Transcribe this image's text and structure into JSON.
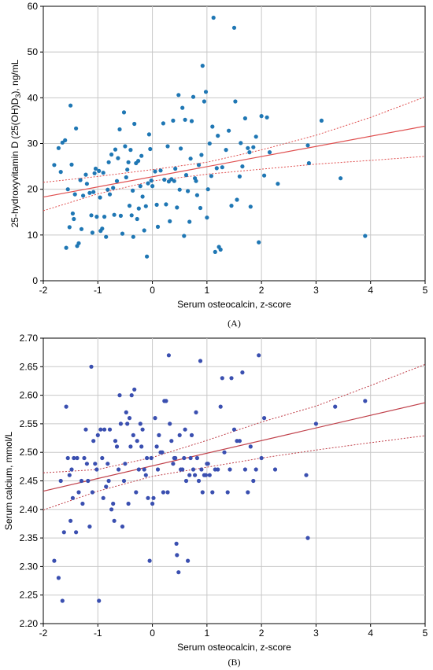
{
  "chart_data": [
    {
      "type": "scatter",
      "panel_label": "(A)",
      "xlabel": "Serum osteocalcin, z-score",
      "ylabel_main": "25-hydroxyvitamin D (25(OH)D",
      "ylabel_sub": "3",
      "ylabel_tail": "), ng/mL",
      "xlim": [
        -2,
        5
      ],
      "ylim": [
        0,
        60
      ],
      "x_ticks": [
        -2,
        -1,
        0,
        1,
        2,
        3,
        4,
        5
      ],
      "y_ticks": [
        0,
        10,
        20,
        30,
        40,
        50,
        60
      ],
      "grid": true,
      "point_color": "#1f77b4",
      "fit_color": "#e05050",
      "fit_line": {
        "x": [
          -2,
          5
        ],
        "y": [
          18.3,
          33.8
        ]
      },
      "ci_upper": {
        "x": [
          -2,
          -1,
          0,
          1,
          2,
          3,
          4,
          5
        ],
        "y": [
          21.5,
          22.8,
          24.3,
          25.9,
          28.6,
          31.8,
          35.7,
          40.2
        ]
      },
      "ci_lower": {
        "x": [
          -2,
          -1,
          0,
          1,
          2,
          3,
          4,
          5
        ],
        "y": [
          15.3,
          19.0,
          21.8,
          23.3,
          24.4,
          25.5,
          26.3,
          27.2
        ]
      },
      "points": [
        [
          -1.8,
          25.3
        ],
        [
          -1.72,
          29.0
        ],
        [
          -1.68,
          23.8
        ],
        [
          -1.65,
          30.2
        ],
        [
          -1.6,
          30.7
        ],
        [
          -1.58,
          7.2
        ],
        [
          -1.55,
          20.0
        ],
        [
          -1.52,
          11.7
        ],
        [
          -1.5,
          38.3
        ],
        [
          -1.48,
          25.4
        ],
        [
          -1.46,
          14.7
        ],
        [
          -1.44,
          13.5
        ],
        [
          -1.42,
          18.9
        ],
        [
          -1.4,
          33.3
        ],
        [
          -1.38,
          7.6
        ],
        [
          -1.35,
          8.2
        ],
        [
          -1.32,
          22.0
        ],
        [
          -1.3,
          11.3
        ],
        [
          -1.27,
          18.6
        ],
        [
          -1.22,
          23.2
        ],
        [
          -1.2,
          21.2
        ],
        [
          -1.15,
          19.2
        ],
        [
          -1.12,
          14.3
        ],
        [
          -1.1,
          10.5
        ],
        [
          -1.08,
          19.4
        ],
        [
          -1.06,
          23.5
        ],
        [
          -1.04,
          24.5
        ],
        [
          -1.02,
          14.0
        ],
        [
          -0.98,
          24.0
        ],
        [
          -0.96,
          18.2
        ],
        [
          -0.95,
          10.9
        ],
        [
          -0.92,
          11.4
        ],
        [
          -0.9,
          23.6
        ],
        [
          -0.88,
          14.0
        ],
        [
          -0.85,
          9.6
        ],
        [
          -0.82,
          19.9
        ],
        [
          -0.8,
          25.9
        ],
        [
          -0.78,
          18.9
        ],
        [
          -0.75,
          27.6
        ],
        [
          -0.72,
          20.3
        ],
        [
          -0.7,
          14.4
        ],
        [
          -0.68,
          28.7
        ],
        [
          -0.65,
          21.8
        ],
        [
          -0.63,
          26.8
        ],
        [
          -0.6,
          33.1
        ],
        [
          -0.58,
          14.2
        ],
        [
          -0.55,
          10.3
        ],
        [
          -0.52,
          36.8
        ],
        [
          -0.5,
          29.4
        ],
        [
          -0.48,
          22.6
        ],
        [
          -0.46,
          24.3
        ],
        [
          -0.44,
          25.9
        ],
        [
          -0.42,
          16.4
        ],
        [
          -0.4,
          28.6
        ],
        [
          -0.38,
          14.3
        ],
        [
          -0.36,
          19.7
        ],
        [
          -0.35,
          9.6
        ],
        [
          -0.33,
          34.3
        ],
        [
          -0.3,
          25.7
        ],
        [
          -0.28,
          13.5
        ],
        [
          -0.26,
          26.2
        ],
        [
          -0.25,
          15.8
        ],
        [
          -0.22,
          20.7
        ],
        [
          -0.2,
          27.3
        ],
        [
          -0.18,
          18.4
        ],
        [
          -0.15,
          11.0
        ],
        [
          -0.12,
          16.3
        ],
        [
          -0.1,
          5.3
        ],
        [
          -0.08,
          21.3
        ],
        [
          -0.06,
          32.0
        ],
        [
          -0.04,
          28.8
        ],
        [
          -0.02,
          21.9
        ],
        [
          0.0,
          20.7
        ],
        [
          0.05,
          23.9
        ],
        [
          0.08,
          16.6
        ],
        [
          0.1,
          11.8
        ],
        [
          0.15,
          24.1
        ],
        [
          0.2,
          34.4
        ],
        [
          0.22,
          22.1
        ],
        [
          0.25,
          16.7
        ],
        [
          0.28,
          29.4
        ],
        [
          0.3,
          21.7
        ],
        [
          0.32,
          13.0
        ],
        [
          0.35,
          22.2
        ],
        [
          0.38,
          35.0
        ],
        [
          0.4,
          21.8
        ],
        [
          0.42,
          24.5
        ],
        [
          0.45,
          16.0
        ],
        [
          0.48,
          40.6
        ],
        [
          0.5,
          19.9
        ],
        [
          0.52,
          28.9
        ],
        [
          0.55,
          37.8
        ],
        [
          0.58,
          9.8
        ],
        [
          0.6,
          35.2
        ],
        [
          0.62,
          23.1
        ],
        [
          0.65,
          19.6
        ],
        [
          0.68,
          12.9
        ],
        [
          0.7,
          26.7
        ],
        [
          0.72,
          34.9
        ],
        [
          0.75,
          40.2
        ],
        [
          0.78,
          22.4
        ],
        [
          0.8,
          21.8
        ],
        [
          0.82,
          18.7
        ],
        [
          0.85,
          25.3
        ],
        [
          0.88,
          15.9
        ],
        [
          0.9,
          27.5
        ],
        [
          0.92,
          47.0
        ],
        [
          0.95,
          39.2
        ],
        [
          0.98,
          41.3
        ],
        [
          1.0,
          13.8
        ],
        [
          1.02,
          20.0
        ],
        [
          1.05,
          30.0
        ],
        [
          1.08,
          22.9
        ],
        [
          1.1,
          33.7
        ],
        [
          1.12,
          57.5
        ],
        [
          1.15,
          6.3
        ],
        [
          1.18,
          24.6
        ],
        [
          1.2,
          31.7
        ],
        [
          1.22,
          7.4
        ],
        [
          1.25,
          6.8
        ],
        [
          1.28,
          24.8
        ],
        [
          1.35,
          28.6
        ],
        [
          1.4,
          32.8
        ],
        [
          1.45,
          16.4
        ],
        [
          1.5,
          55.3
        ],
        [
          1.52,
          39.2
        ],
        [
          1.55,
          17.7
        ],
        [
          1.6,
          22.8
        ],
        [
          1.62,
          30.1
        ],
        [
          1.65,
          25.0
        ],
        [
          1.7,
          35.5
        ],
        [
          1.75,
          29.0
        ],
        [
          1.78,
          28.1
        ],
        [
          1.8,
          16.2
        ],
        [
          1.85,
          29.2
        ],
        [
          1.9,
          31.5
        ],
        [
          1.95,
          8.4
        ],
        [
          2.0,
          36.0
        ],
        [
          2.05,
          23.0
        ],
        [
          2.1,
          35.7
        ],
        [
          2.15,
          28.1
        ],
        [
          2.3,
          21.2
        ],
        [
          2.85,
          29.6
        ],
        [
          2.87,
          25.7
        ],
        [
          3.1,
          35.0
        ],
        [
          3.45,
          22.4
        ],
        [
          3.9,
          9.8
        ]
      ]
    },
    {
      "type": "scatter",
      "panel_label": "(B)",
      "xlabel": "Serum osteocalcin, z-score",
      "ylabel_main": "Serum calcium, mmol/L",
      "xlim": [
        -2,
        5
      ],
      "ylim": [
        2.2,
        2.7
      ],
      "x_ticks": [
        -2,
        -1,
        0,
        1,
        2,
        3,
        4,
        5
      ],
      "y_ticks": [
        2.2,
        2.25,
        2.3,
        2.35,
        2.4,
        2.45,
        2.5,
        2.55,
        2.6,
        2.65,
        2.7
      ],
      "y_tick_labels": [
        "2.20",
        "2.25",
        "2.30",
        "2.35",
        "2.40",
        "2.45",
        "2.50",
        "2.55",
        "2.60",
        "2.65",
        "2.70"
      ],
      "grid": true,
      "point_color": "#3a4fb0",
      "fit_color": "#c0404a",
      "fit_line": {
        "x": [
          -2,
          5
        ],
        "y": [
          2.432,
          2.587
        ]
      },
      "ci_upper": {
        "x": [
          -2,
          -1,
          0,
          1,
          2,
          3,
          4,
          5
        ],
        "y": [
          2.464,
          2.47,
          2.491,
          2.521,
          2.553,
          2.581,
          2.617,
          2.654
        ]
      },
      "ci_lower": {
        "x": [
          -2,
          -1,
          0,
          1,
          2,
          3,
          4,
          5
        ],
        "y": [
          2.399,
          2.432,
          2.458,
          2.474,
          2.49,
          2.504,
          2.517,
          2.529
        ]
      },
      "points": [
        [
          -1.8,
          2.31
        ],
        [
          -1.72,
          2.28
        ],
        [
          -1.68,
          2.45
        ],
        [
          -1.65,
          2.24
        ],
        [
          -1.62,
          2.36
        ],
        [
          -1.58,
          2.58
        ],
        [
          -1.55,
          2.49
        ],
        [
          -1.52,
          2.46
        ],
        [
          -1.5,
          2.38
        ],
        [
          -1.48,
          2.47
        ],
        [
          -1.46,
          2.42
        ],
        [
          -1.44,
          2.49
        ],
        [
          -1.4,
          2.36
        ],
        [
          -1.38,
          2.49
        ],
        [
          -1.35,
          2.43
        ],
        [
          -1.3,
          2.45
        ],
        [
          -1.28,
          2.41
        ],
        [
          -1.25,
          2.49
        ],
        [
          -1.22,
          2.54
        ],
        [
          -1.2,
          2.48
        ],
        [
          -1.18,
          2.45
        ],
        [
          -1.15,
          2.37
        ],
        [
          -1.12,
          2.65
        ],
        [
          -1.1,
          2.43
        ],
        [
          -1.08,
          2.52
        ],
        [
          -1.05,
          2.48
        ],
        [
          -1.02,
          2.47
        ],
        [
          -1.0,
          2.53
        ],
        [
          -0.98,
          2.24
        ],
        [
          -0.95,
          2.54
        ],
        [
          -0.92,
          2.49
        ],
        [
          -0.9,
          2.42
        ],
        [
          -0.88,
          2.54
        ],
        [
          -0.85,
          2.44
        ],
        [
          -0.82,
          2.48
        ],
        [
          -0.8,
          2.45
        ],
        [
          -0.78,
          2.54
        ],
        [
          -0.75,
          2.4
        ],
        [
          -0.72,
          2.41
        ],
        [
          -0.7,
          2.38
        ],
        [
          -0.68,
          2.52
        ],
        [
          -0.65,
          2.51
        ],
        [
          -0.62,
          2.47
        ],
        [
          -0.6,
          2.6
        ],
        [
          -0.58,
          2.55
        ],
        [
          -0.55,
          2.37
        ],
        [
          -0.52,
          2.45
        ],
        [
          -0.5,
          2.48
        ],
        [
          -0.48,
          2.57
        ],
        [
          -0.46,
          2.55
        ],
        [
          -0.44,
          2.41
        ],
        [
          -0.42,
          2.56
        ],
        [
          -0.4,
          2.51
        ],
        [
          -0.38,
          2.6
        ],
        [
          -0.35,
          2.53
        ],
        [
          -0.33,
          2.61
        ],
        [
          -0.3,
          2.43
        ],
        [
          -0.28,
          2.52
        ],
        [
          -0.25,
          2.47
        ],
        [
          -0.22,
          2.55
        ],
        [
          -0.2,
          2.51
        ],
        [
          -0.18,
          2.54
        ],
        [
          -0.15,
          2.47
        ],
        [
          -0.12,
          2.46
        ],
        [
          -0.1,
          2.49
        ],
        [
          -0.08,
          2.42
        ],
        [
          -0.05,
          2.31
        ],
        [
          -0.02,
          2.49
        ],
        [
          0.0,
          2.41
        ],
        [
          0.02,
          2.42
        ],
        [
          0.05,
          2.56
        ],
        [
          0.08,
          2.51
        ],
        [
          0.1,
          2.47
        ],
        [
          0.12,
          2.53
        ],
        [
          0.15,
          2.5
        ],
        [
          0.18,
          2.5
        ],
        [
          0.2,
          2.43
        ],
        [
          0.22,
          2.59
        ],
        [
          0.25,
          2.59
        ],
        [
          0.28,
          2.43
        ],
        [
          0.3,
          2.67
        ],
        [
          0.32,
          2.55
        ],
        [
          0.35,
          2.52
        ],
        [
          0.38,
          2.48
        ],
        [
          0.4,
          2.49
        ],
        [
          0.42,
          2.49
        ],
        [
          0.44,
          2.34
        ],
        [
          0.45,
          2.32
        ],
        [
          0.48,
          2.29
        ],
        [
          0.5,
          2.53
        ],
        [
          0.52,
          2.47
        ],
        [
          0.55,
          2.47
        ],
        [
          0.58,
          2.49
        ],
        [
          0.6,
          2.54
        ],
        [
          0.62,
          2.45
        ],
        [
          0.65,
          2.31
        ],
        [
          0.68,
          2.46
        ],
        [
          0.7,
          2.49
        ],
        [
          0.72,
          2.53
        ],
        [
          0.75,
          2.47
        ],
        [
          0.78,
          2.46
        ],
        [
          0.8,
          2.57
        ],
        [
          0.82,
          2.49
        ],
        [
          0.85,
          2.45
        ],
        [
          0.88,
          2.66
        ],
        [
          0.9,
          2.47
        ],
        [
          0.92,
          2.43
        ],
        [
          0.95,
          2.46
        ],
        [
          0.98,
          2.46
        ],
        [
          1.0,
          2.48
        ],
        [
          1.02,
          2.48
        ],
        [
          1.05,
          2.46
        ],
        [
          1.1,
          2.43
        ],
        [
          1.15,
          2.47
        ],
        [
          1.2,
          2.47
        ],
        [
          1.25,
          2.58
        ],
        [
          1.28,
          2.63
        ],
        [
          1.32,
          2.5
        ],
        [
          1.38,
          2.43
        ],
        [
          1.42,
          2.47
        ],
        [
          1.45,
          2.63
        ],
        [
          1.5,
          2.54
        ],
        [
          1.55,
          2.52
        ],
        [
          1.6,
          2.52
        ],
        [
          1.65,
          2.64
        ],
        [
          1.7,
          2.47
        ],
        [
          1.75,
          2.43
        ],
        [
          1.8,
          2.51
        ],
        [
          1.85,
          2.45
        ],
        [
          1.9,
          2.47
        ],
        [
          1.95,
          2.67
        ],
        [
          2.0,
          2.49
        ],
        [
          2.05,
          2.56
        ],
        [
          2.25,
          2.47
        ],
        [
          2.82,
          2.46
        ],
        [
          2.85,
          2.35
        ],
        [
          3.0,
          2.55
        ],
        [
          3.35,
          2.58
        ],
        [
          3.9,
          2.59
        ]
      ]
    }
  ]
}
